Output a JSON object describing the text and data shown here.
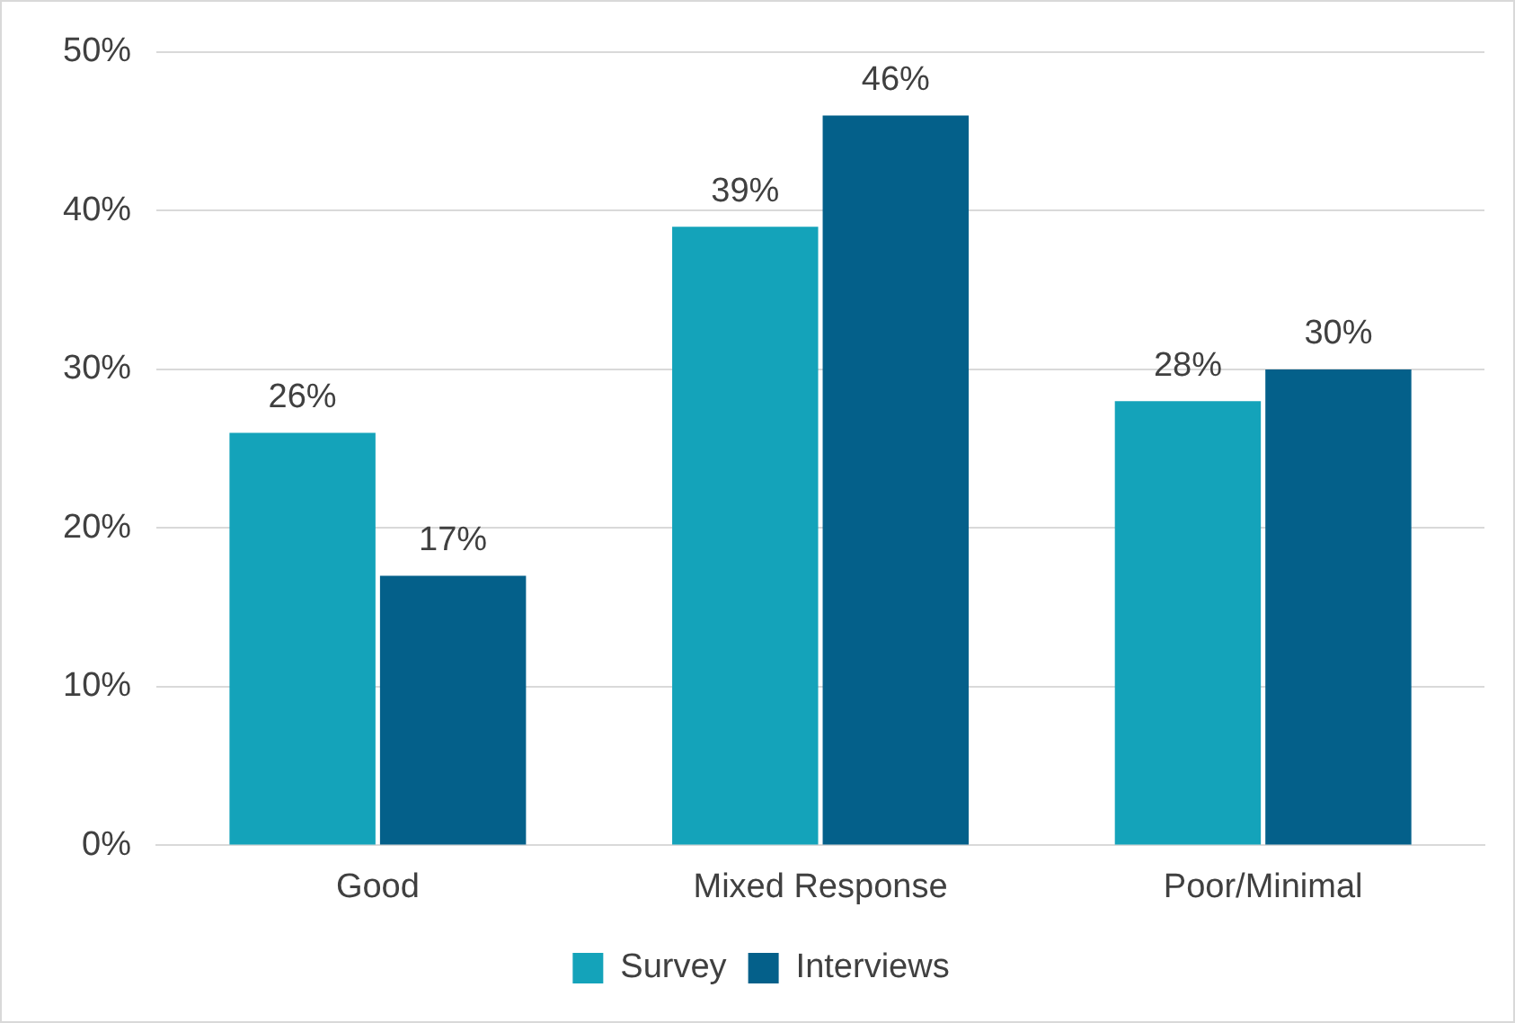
{
  "chart_data": {
    "type": "bar",
    "categories": [
      "Good",
      "Mixed Response",
      "Poor/Minimal"
    ],
    "series": [
      {
        "name": "Survey",
        "color": "#14a3ba",
        "values": [
          26,
          39,
          28
        ],
        "value_labels": [
          "26%",
          "39%",
          "28%"
        ]
      },
      {
        "name": "Interviews",
        "color": "#04608a",
        "values": [
          17,
          46,
          30
        ],
        "value_labels": [
          "17%",
          "46%",
          "30%"
        ]
      }
    ],
    "ylim": [
      0,
      50
    ],
    "yticks": [
      {
        "value": 0,
        "label": "0%"
      },
      {
        "value": 10,
        "label": "10%"
      },
      {
        "value": 20,
        "label": "20%"
      },
      {
        "value": 30,
        "label": "30%"
      },
      {
        "value": 40,
        "label": "40%"
      },
      {
        "value": 50,
        "label": "50%"
      }
    ],
    "grid": "y",
    "legend": "bottom"
  }
}
